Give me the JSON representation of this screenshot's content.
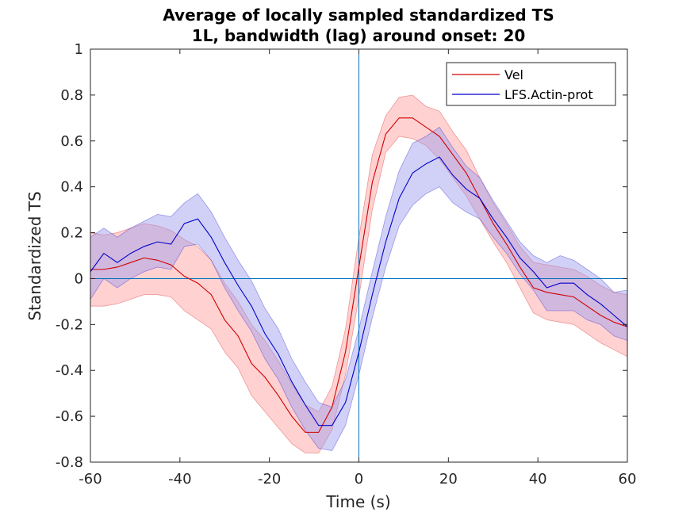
{
  "chart_data": {
    "type": "line",
    "title": [
      "Average of locally sampled standardized TS",
      "1L, bandwidth (lag) around onset: 20"
    ],
    "xlabel": "Time (s)",
    "ylabel": "Standardized TS",
    "xlim": [
      -60,
      60
    ],
    "ylim": [
      -0.8,
      1
    ],
    "xticks": [
      "-60",
      "-40",
      "-20",
      "0",
      "20",
      "40",
      "60"
    ],
    "yticks": [
      "-0.8",
      "-0.6",
      "-0.4",
      "-0.2",
      "0",
      "0.2",
      "0.4",
      "0.6",
      "0.8",
      "1"
    ],
    "reference_lines": {
      "vertical_x": 0,
      "horizontal_y": 0,
      "color": "#0072bd"
    },
    "legend_position": "top-right",
    "series": [
      {
        "name": "Vel",
        "color": "#d00000",
        "band_color": "#ff9999",
        "x": [
          -60,
          -57,
          -54,
          -51,
          -48,
          -45,
          -42,
          -39,
          -36,
          -33,
          -30,
          -27,
          -24,
          -21,
          -18,
          -15,
          -12,
          -9,
          -6,
          -3,
          0,
          3,
          6,
          9,
          12,
          15,
          18,
          21,
          24,
          27,
          30,
          33,
          36,
          39,
          42,
          45,
          48,
          51,
          54,
          57,
          60
        ],
        "y": [
          0.04,
          0.04,
          0.05,
          0.07,
          0.09,
          0.08,
          0.06,
          0.01,
          -0.02,
          -0.07,
          -0.18,
          -0.25,
          -0.37,
          -0.43,
          -0.51,
          -0.6,
          -0.67,
          -0.67,
          -0.56,
          -0.32,
          0.05,
          0.42,
          0.63,
          0.7,
          0.7,
          0.66,
          0.62,
          0.54,
          0.46,
          0.35,
          0.24,
          0.15,
          0.05,
          -0.04,
          -0.06,
          -0.07,
          -0.08,
          -0.12,
          -0.16,
          -0.19,
          -0.21
        ],
        "upper": [
          0.2,
          0.19,
          0.2,
          0.22,
          0.24,
          0.23,
          0.21,
          0.17,
          0.14,
          0.08,
          -0.02,
          -0.1,
          -0.2,
          -0.27,
          -0.36,
          -0.46,
          -0.55,
          -0.58,
          -0.47,
          -0.22,
          0.18,
          0.54,
          0.71,
          0.79,
          0.8,
          0.75,
          0.73,
          0.64,
          0.56,
          0.44,
          0.33,
          0.24,
          0.14,
          0.07,
          0.06,
          0.05,
          0.04,
          0.01,
          -0.03,
          -0.06,
          -0.07
        ],
        "lower": [
          -0.12,
          -0.12,
          -0.11,
          -0.09,
          -0.07,
          -0.07,
          -0.08,
          -0.14,
          -0.18,
          -0.22,
          -0.32,
          -0.39,
          -0.51,
          -0.58,
          -0.65,
          -0.72,
          -0.76,
          -0.76,
          -0.66,
          -0.42,
          -0.08,
          0.3,
          0.55,
          0.62,
          0.61,
          0.58,
          0.52,
          0.44,
          0.36,
          0.26,
          0.16,
          0.07,
          -0.04,
          -0.15,
          -0.18,
          -0.19,
          -0.2,
          -0.24,
          -0.28,
          -0.31,
          -0.34
        ]
      },
      {
        "name": "LFS.Actin-prot",
        "color": "#0000cc",
        "band_color": "#9999ee",
        "x": [
          -60,
          -57,
          -54,
          -51,
          -48,
          -45,
          -42,
          -39,
          -36,
          -33,
          -30,
          -27,
          -24,
          -21,
          -18,
          -15,
          -12,
          -9,
          -6,
          -3,
          0,
          3,
          6,
          9,
          12,
          15,
          18,
          21,
          24,
          27,
          30,
          33,
          36,
          39,
          42,
          45,
          48,
          51,
          54,
          57,
          60
        ],
        "y": [
          0.03,
          0.11,
          0.07,
          0.11,
          0.14,
          0.16,
          0.15,
          0.24,
          0.26,
          0.18,
          0.07,
          -0.03,
          -0.12,
          -0.24,
          -0.33,
          -0.45,
          -0.55,
          -0.64,
          -0.64,
          -0.54,
          -0.32,
          -0.07,
          0.16,
          0.35,
          0.46,
          0.5,
          0.53,
          0.45,
          0.39,
          0.35,
          0.26,
          0.18,
          0.09,
          0.03,
          -0.04,
          -0.02,
          -0.02,
          -0.07,
          -0.11,
          -0.16,
          -0.21
        ],
        "upper": [
          0.18,
          0.22,
          0.18,
          0.22,
          0.25,
          0.28,
          0.27,
          0.33,
          0.37,
          0.29,
          0.18,
          0.08,
          -0.01,
          -0.13,
          -0.22,
          -0.35,
          -0.45,
          -0.54,
          -0.56,
          -0.44,
          -0.22,
          0.03,
          0.27,
          0.47,
          0.59,
          0.62,
          0.66,
          0.57,
          0.49,
          0.44,
          0.34,
          0.25,
          0.16,
          0.1,
          0.07,
          0.1,
          0.08,
          0.04,
          0.0,
          -0.06,
          -0.05
        ],
        "lower": [
          -0.09,
          0.0,
          -0.04,
          0.0,
          0.03,
          0.05,
          0.04,
          0.14,
          0.15,
          0.08,
          -0.04,
          -0.14,
          -0.23,
          -0.35,
          -0.44,
          -0.56,
          -0.66,
          -0.74,
          -0.75,
          -0.64,
          -0.42,
          -0.17,
          0.05,
          0.23,
          0.32,
          0.37,
          0.4,
          0.33,
          0.29,
          0.26,
          0.18,
          0.11,
          0.02,
          -0.05,
          -0.14,
          -0.14,
          -0.14,
          -0.18,
          -0.2,
          -0.25,
          -0.27
        ]
      }
    ]
  }
}
